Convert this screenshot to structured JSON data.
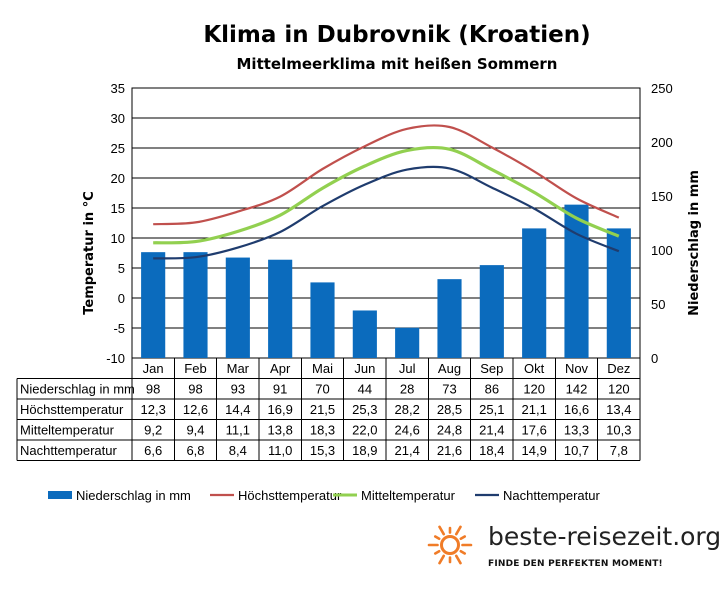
{
  "chart_data": {
    "type": "bar",
    "title": "Klima in Dubrovnik (Kroatien)",
    "subtitle": "Mittelmeerklima mit heißen Sommern",
    "categories": [
      "Jan",
      "Feb",
      "Mar",
      "Apr",
      "Mai",
      "Jun",
      "Jul",
      "Aug",
      "Sep",
      "Okt",
      "Nov",
      "Dez"
    ],
    "ylabel_left": "Temperatur in °C",
    "ylabel_right": "Niederschlag in mm",
    "ylim_left": [
      -10,
      35
    ],
    "yticks_left": [
      "35",
      "30",
      "25",
      "20",
      "15",
      "10",
      "5",
      "0",
      "-5",
      "-10"
    ],
    "ylim_right": [
      0,
      250
    ],
    "yticks_right": [
      "250",
      "200",
      "150",
      "100",
      "50",
      "0"
    ],
    "grid": true,
    "legend_position": "bottom",
    "series": [
      {
        "name": "Niederschlag in mm",
        "type": "bar",
        "axis": "right",
        "color": "#0b6bbd",
        "values": [
          98,
          98,
          93,
          91,
          70,
          44,
          28,
          73,
          86,
          120,
          142,
          120
        ],
        "labels": [
          "98",
          "98",
          "93",
          "91",
          "70",
          "44",
          "28",
          "73",
          "86",
          "120",
          "142",
          "120"
        ]
      },
      {
        "name": "Höchsttemperatur",
        "type": "line",
        "axis": "left",
        "color": "#c0504d",
        "values": [
          12.3,
          12.6,
          14.4,
          16.9,
          21.5,
          25.3,
          28.2,
          28.5,
          25.1,
          21.1,
          16.6,
          13.4
        ],
        "labels": [
          "12,3",
          "12,6",
          "14,4",
          "16,9",
          "21,5",
          "25,3",
          "28,2",
          "28,5",
          "25,1",
          "21,1",
          "16,6",
          "13,4"
        ]
      },
      {
        "name": "Mitteltemperatur",
        "type": "line",
        "axis": "left",
        "color": "#92d050",
        "values": [
          9.2,
          9.4,
          11.1,
          13.8,
          18.3,
          22.0,
          24.6,
          24.8,
          21.4,
          17.6,
          13.3,
          10.3
        ],
        "labels": [
          "9,2",
          "9,4",
          "11,1",
          "13,8",
          "18,3",
          "22,0",
          "24,6",
          "24,8",
          "21,4",
          "17,6",
          "13,3",
          "10,3"
        ]
      },
      {
        "name": "Nachttemperatur",
        "type": "line",
        "axis": "left",
        "color": "#1f3c6e",
        "values": [
          6.6,
          6.8,
          8.4,
          11.0,
          15.3,
          18.9,
          21.4,
          21.6,
          18.4,
          14.9,
          10.7,
          7.8
        ],
        "labels": [
          "6,6",
          "6,8",
          "8,4",
          "11,0",
          "15,3",
          "18,9",
          "21,4",
          "21,6",
          "18,4",
          "14,9",
          "10,7",
          "7,8"
        ]
      }
    ]
  },
  "brand": {
    "name": "beste-reisezeit.org",
    "tagline": "FINDE DEN PERFEKTEN MOMENT!",
    "icon": "sun-icon",
    "icon_color": "#f07c28"
  }
}
